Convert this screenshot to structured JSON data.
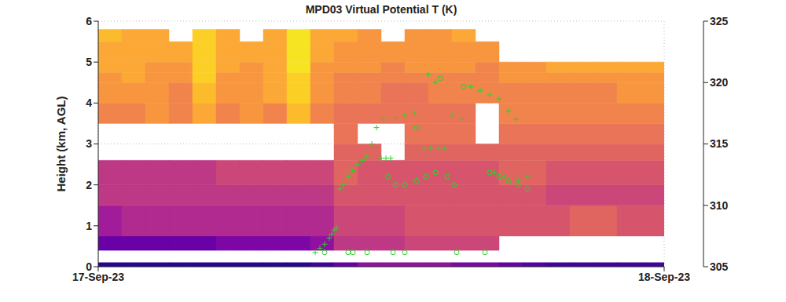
{
  "chart_data": {
    "type": "heatmap",
    "title": "MPD03 Virtual Potential T (K)",
    "y_label": "Height (km, AGL)",
    "xlim": [
      0,
      24
    ],
    "xticks": [
      {
        "value": 0,
        "label": "17-Sep-23"
      },
      {
        "value": 24,
        "label": "18-Sep-23"
      }
    ],
    "ylim": [
      0,
      6
    ],
    "yticks": [
      0,
      1,
      2,
      3,
      4,
      5,
      6
    ],
    "grid": true,
    "x_edges": [
      0,
      1,
      2,
      3,
      4,
      5,
      6,
      7,
      8,
      9,
      10,
      11,
      12,
      13,
      14,
      15,
      16,
      17,
      18,
      19,
      20,
      21,
      22,
      23,
      24
    ],
    "y_edges": [
      0,
      0.1,
      0.4,
      0.75,
      1.5,
      2.0,
      2.6,
      3.0,
      3.5,
      4.0,
      4.5,
      4.75,
      5.0,
      5.5,
      5.8,
      6
    ],
    "z": [
      [
        306,
        306,
        306,
        306,
        306,
        306,
        306,
        306,
        306,
        307,
        309,
        311,
        311,
        311,
        311,
        310,
        310,
        309,
        308,
        307,
        307,
        307,
        307,
        307
      ],
      [
        null,
        null,
        null,
        null,
        null,
        null,
        null,
        null,
        null,
        null,
        null,
        null,
        null,
        null,
        null,
        null,
        null,
        null,
        null,
        null,
        null,
        null,
        null,
        null
      ],
      [
        309,
        309,
        309,
        309,
        309,
        310,
        310,
        310,
        310,
        311,
        314,
        314,
        314,
        315,
        315,
        315,
        315,
        null,
        null,
        null,
        null,
        null,
        null,
        null
      ],
      [
        312,
        313,
        313,
        313,
        313,
        313,
        313,
        313,
        313,
        313,
        315,
        315,
        315,
        316,
        316,
        316,
        316,
        316,
        316,
        316,
        317,
        317,
        316,
        316
      ],
      [
        314,
        314,
        314,
        314,
        314,
        314,
        314,
        314,
        314,
        314,
        316,
        316,
        316,
        316,
        316,
        316,
        316,
        316,
        316,
        315,
        315,
        315,
        315,
        315
      ],
      [
        314,
        314,
        314,
        314,
        314,
        315,
        315,
        315,
        315,
        315,
        317,
        316,
        316,
        316,
        316,
        316,
        316,
        317,
        317,
        316,
        316,
        316,
        316,
        316
      ],
      [
        null,
        null,
        null,
        null,
        null,
        null,
        null,
        null,
        null,
        null,
        317,
        317,
        null,
        317,
        317,
        317,
        317,
        317,
        317,
        317,
        317,
        317,
        317,
        317
      ],
      [
        null,
        null,
        null,
        null,
        null,
        null,
        null,
        null,
        null,
        null,
        318,
        null,
        null,
        318,
        318,
        318,
        null,
        318,
        318,
        318,
        318,
        318,
        318,
        318
      ],
      [
        319,
        319,
        320,
        319,
        321,
        319,
        320,
        319,
        322,
        319,
        318,
        318,
        318,
        318,
        318,
        318,
        null,
        319,
        319,
        319,
        319,
        319,
        319,
        319
      ],
      [
        320,
        320,
        320,
        319,
        322,
        320,
        320,
        321,
        323,
        320,
        319,
        319,
        318,
        318,
        319,
        319,
        319,
        319,
        319,
        319,
        319,
        319,
        320,
        320
      ],
      [
        320,
        321,
        320,
        320,
        323,
        320,
        320,
        321,
        323,
        320,
        319,
        319,
        319,
        319,
        319,
        319,
        319,
        320,
        320,
        320,
        320,
        320,
        320,
        320
      ],
      [
        321,
        321,
        320,
        320,
        323,
        321,
        320,
        321,
        324,
        320,
        320,
        320,
        319,
        320,
        320,
        320,
        319,
        320,
        320,
        321,
        321,
        321,
        321,
        321
      ],
      [
        321,
        321,
        321,
        321,
        323,
        321,
        321,
        321,
        324,
        321,
        320,
        320,
        320,
        320,
        320,
        320,
        320,
        null,
        null,
        null,
        null,
        null,
        null,
        null
      ],
      [
        322,
        321,
        321,
        null,
        323,
        321,
        null,
        321,
        324,
        321,
        321,
        320,
        null,
        320,
        320,
        321,
        null,
        null,
        null,
        null,
        null,
        null,
        null,
        null
      ],
      [
        null,
        null,
        null,
        null,
        null,
        null,
        null,
        null,
        null,
        null,
        null,
        null,
        null,
        null,
        null,
        null,
        null,
        null,
        null,
        null,
        null,
        null,
        null,
        null
      ]
    ],
    "colorbar": {
      "range": [
        305,
        325
      ],
      "ticks": [
        305,
        310,
        315,
        320,
        325
      ]
    },
    "series": [
      {
        "type": "scatter",
        "marker": "plus",
        "color": "#2ad42a",
        "x": [
          9.2,
          9.4,
          9.6,
          9.8,
          9.9,
          10.0,
          10.1,
          10.25,
          10.4,
          10.6,
          10.8,
          11.0,
          11.2,
          11.4,
          11.6,
          11.8,
          12.0,
          12.2,
          12.4,
          12.1,
          12.6,
          13.0,
          13.4,
          13.8,
          14.1,
          14.4,
          14.7,
          14.0,
          14.3,
          15.0,
          15.4,
          15.8,
          16.2,
          16.6,
          17.0,
          17.4,
          17.7,
          16.8,
          17.2,
          17.8,
          18.2
        ],
        "y": [
          0.35,
          0.45,
          0.55,
          0.7,
          0.8,
          0.9,
          0.95,
          1.9,
          2.0,
          2.2,
          2.35,
          2.5,
          2.6,
          2.7,
          3.0,
          3.4,
          2.65,
          2.65,
          2.65,
          3.6,
          3.65,
          3.7,
          3.75,
          2.9,
          2.9,
          2.9,
          2.9,
          4.7,
          4.5,
          3.7,
          3.6,
          4.4,
          4.3,
          4.2,
          4.1,
          3.8,
          3.6,
          2.3,
          2.2,
          2.1,
          2.2
        ]
      },
      {
        "type": "scatter",
        "marker": "circle",
        "color": "#2ad42a",
        "x": [
          9.6,
          10.6,
          10.8,
          11.4,
          12.5,
          13.0,
          15.2,
          16.4,
          12.3,
          12.6,
          13.0,
          13.5,
          13.9,
          14.3,
          14.8,
          15.1,
          16.6,
          17.0,
          17.4,
          17.8,
          18.2,
          13.5,
          14.5,
          15.5
        ],
        "y": [
          0.35,
          0.35,
          0.35,
          0.35,
          0.35,
          0.35,
          0.35,
          0.35,
          2.2,
          2.0,
          2.0,
          2.1,
          2.2,
          2.3,
          2.2,
          2.0,
          2.3,
          2.2,
          2.1,
          2.0,
          1.9,
          3.4,
          4.6,
          4.4
        ]
      }
    ]
  }
}
